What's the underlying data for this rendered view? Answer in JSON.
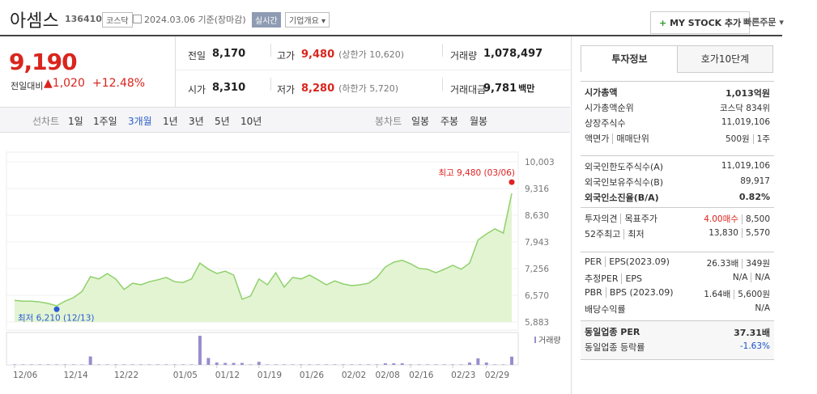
{
  "header": {
    "name": "아셈스",
    "code": "136410",
    "market": "코스닥",
    "date": "2024.03.06 기준(장마감)",
    "realtime": "실시간",
    "company_info": "기업개요",
    "my_stock": "MY STOCK 추가",
    "quick_order": "빠른주문"
  },
  "price": {
    "current": "9,190",
    "change_label": "전일대비",
    "change": "1,020",
    "change_pct": "+12.48%"
  },
  "summary": [
    [
      {
        "label": "전일",
        "value": "8,170"
      },
      {
        "label": "고가",
        "value": "9,480",
        "note": "(상한가 10,620)"
      },
      {
        "label": "거래량",
        "value": "1,078,497"
      }
    ],
    [
      {
        "label": "시가",
        "value": "8,310"
      },
      {
        "label": "저가",
        "value": "8,280",
        "note": "(하한가 5,720)"
      },
      {
        "label": "거래대금",
        "value": "9,781",
        "unit": "백만"
      }
    ]
  ],
  "tabs": {
    "line_chart": "선차트",
    "periods": [
      "1일",
      "1주일",
      "3개월",
      "1년",
      "3년",
      "5년",
      "10년"
    ],
    "candle_chart": "봉차트",
    "candle_periods": [
      "일봉",
      "주봉",
      "월봉"
    ]
  },
  "chart_data": {
    "type": "line",
    "color": "#8fd16b",
    "fill": "#e3f4d3",
    "categories": [
      "12/06",
      null,
      null,
      null,
      null,
      null,
      "12/14",
      null,
      null,
      null,
      null,
      null,
      "12/22",
      null,
      null,
      null,
      null,
      null,
      null,
      "01/05",
      null,
      null,
      null,
      null,
      "01/12",
      null,
      null,
      null,
      null,
      "01/19",
      null,
      null,
      null,
      null,
      "01/26",
      null,
      null,
      null,
      null,
      "02/02",
      null,
      null,
      null,
      "02/08",
      null,
      null,
      null,
      "02/16",
      null,
      null,
      null,
      null,
      "02/23",
      null,
      null,
      null,
      "02/29",
      null,
      null,
      null
    ],
    "values": [
      6440,
      6420,
      6420,
      6400,
      6360,
      6300,
      6420,
      6510,
      6670,
      7050,
      6990,
      7130,
      6990,
      6720,
      6880,
      6840,
      6920,
      6970,
      7030,
      6920,
      6900,
      6990,
      7400,
      7240,
      7130,
      7190,
      7090,
      6470,
      6550,
      6990,
      6840,
      7150,
      6780,
      7030,
      6990,
      7090,
      6970,
      6840,
      6940,
      6860,
      6820,
      6840,
      6880,
      7030,
      7300,
      7420,
      7470,
      7380,
      7260,
      7240,
      7150,
      7240,
      7340,
      7240,
      7400,
      7990,
      8150,
      8280,
      8170,
      9190
    ],
    "ylim": [
      5883,
      10003
    ],
    "yticks": [
      {
        "value": 10003,
        "label": "10,003"
      },
      {
        "value": 9316,
        "label": "9,316"
      },
      {
        "value": 8630,
        "label": "8,630"
      },
      {
        "value": 7943,
        "label": "7,943"
      },
      {
        "value": 7256,
        "label": "7,256"
      },
      {
        "value": 6570,
        "label": "6,570"
      },
      {
        "value": 5883,
        "label": "5,883"
      }
    ],
    "grid": true,
    "high": {
      "label": "최고 9,480 (03/06)",
      "value": 9480,
      "color": "#e02020"
    },
    "low": {
      "label": "최저 6,210 (12/13)",
      "value": 6210,
      "color": "#2a5bd7"
    },
    "volume": {
      "name": "거래량",
      "color": "#9a8cce",
      "values": [
        60000,
        60000,
        60000,
        60000,
        60000,
        60000,
        60000,
        60000,
        60000,
        1100000,
        60000,
        60000,
        60000,
        60000,
        60000,
        60000,
        60000,
        60000,
        60000,
        60000,
        60000,
        60000,
        3800000,
        900000,
        300000,
        250000,
        250000,
        250000,
        60000,
        400000,
        60000,
        60000,
        60000,
        60000,
        60000,
        60000,
        60000,
        60000,
        60000,
        60000,
        60000,
        60000,
        60000,
        60000,
        200000,
        200000,
        200000,
        60000,
        60000,
        60000,
        60000,
        60000,
        60000,
        60000,
        300000,
        850000,
        300000,
        60000,
        60000,
        1078497
      ]
    }
  },
  "invest": {
    "tabs": [
      "투자정보",
      "호가10단계"
    ],
    "groups": [
      [
        {
          "label": [
            "시가총액"
          ],
          "value": [
            "1,013억원"
          ],
          "bold": true
        },
        {
          "label": [
            "시가총액순위"
          ],
          "value": [
            "코스닥 834위"
          ]
        },
        {
          "label": [
            "상장주식수"
          ],
          "value": [
            "11,019,106"
          ]
        },
        {
          "label": [
            "액면가",
            "매매단위"
          ],
          "value": [
            "500원",
            "1주"
          ]
        }
      ],
      [
        {
          "label": [
            "외국인한도주식수(A)"
          ],
          "value": [
            "11,019,106"
          ]
        },
        {
          "label": [
            "외국인보유주식수(B)"
          ],
          "value": [
            "89,917"
          ]
        },
        {
          "label": [
            "외국인소진율(B/A)"
          ],
          "value": [
            "0.82%"
          ],
          "bold": true
        }
      ],
      [
        {
          "label": [
            "투자의견",
            "목표주가"
          ],
          "value": [
            "4.00매수",
            "8,500"
          ]
        },
        {
          "label": [
            "52주최고",
            "최저"
          ],
          "value": [
            "13,830",
            "5,570"
          ]
        }
      ],
      [
        {
          "label": [
            "PER",
            "EPS(2023.09)"
          ],
          "value": [
            "26.33배",
            "349원"
          ]
        },
        {
          "label": [
            "추정PER",
            "EPS"
          ],
          "value": [
            "N/A",
            "N/A"
          ]
        },
        {
          "label": [
            "PBR",
            "BPS (2023.09)"
          ],
          "value": [
            "1.64배",
            "5,600원"
          ]
        },
        {
          "label": [
            "배당수익률"
          ],
          "value": [
            "N/A"
          ]
        }
      ],
      [
        {
          "label": [
            "동일업종 PER"
          ],
          "value": [
            "37.31배"
          ],
          "bold": true
        },
        {
          "label": [
            "동일업종 등락률"
          ],
          "value": [
            "-1.63%"
          ]
        }
      ]
    ]
  }
}
